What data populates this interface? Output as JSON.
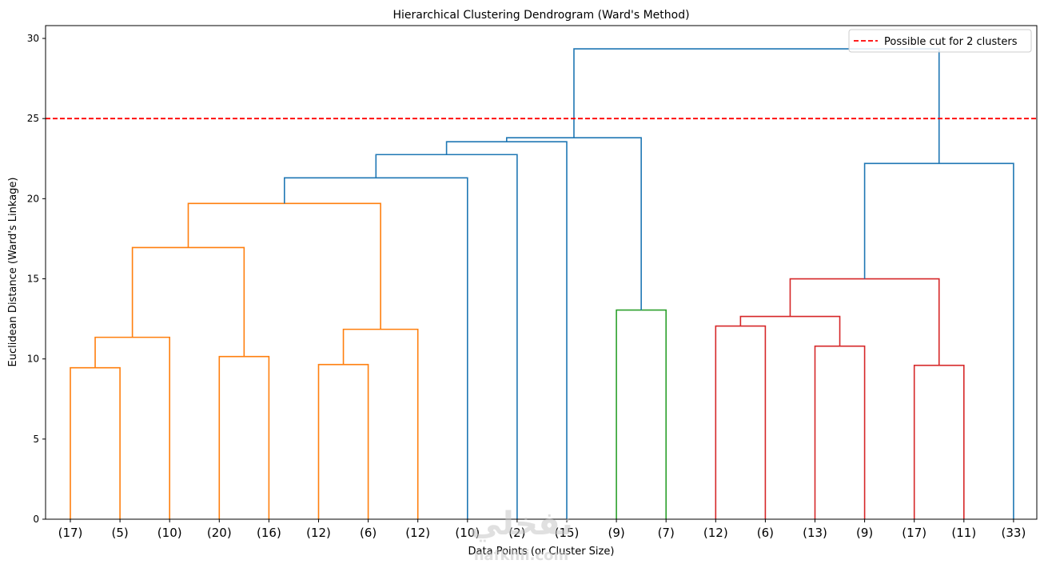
{
  "chart_data": {
    "type": "dendrogram",
    "title": "Hierarchical Clustering Dendrogram (Ward's Method)",
    "xlabel": "Data Points (or Cluster Size)",
    "ylabel": "Euclidean Distance (Ward's Linkage)",
    "ylim": [
      0,
      30.8
    ],
    "yticks": [
      0,
      5,
      10,
      15,
      20,
      25,
      30
    ],
    "grid": false,
    "leaves": [
      "(17)",
      "(5)",
      "(10)",
      "(20)",
      "(16)",
      "(12)",
      "(6)",
      "(12)",
      "(10)",
      "(2)",
      "(15)",
      "(9)",
      "(7)",
      "(12)",
      "(6)",
      "(13)",
      "(9)",
      "(17)",
      "(11)",
      "(33)"
    ],
    "colors": {
      "orange": "#ff7f0e",
      "green": "#2ca02c",
      "red": "#d62728",
      "blue": "#1f77b4",
      "cut": "#ff0000"
    },
    "links": [
      {
        "left": "L0",
        "right": "L1",
        "height": 9.45,
        "color": "orange"
      },
      {
        "left": "M0",
        "right": "L2",
        "height": 11.35,
        "color": "orange"
      },
      {
        "left": "L3",
        "right": "L4",
        "height": 10.15,
        "color": "orange"
      },
      {
        "left": "M1",
        "right": "M2",
        "height": 16.95,
        "color": "orange"
      },
      {
        "left": "L5",
        "right": "L6",
        "height": 9.65,
        "color": "orange"
      },
      {
        "left": "M4",
        "right": "L7",
        "height": 11.85,
        "color": "orange"
      },
      {
        "left": "M3",
        "right": "M5",
        "height": 19.7,
        "color": "orange"
      },
      {
        "left": "M6",
        "right": "L8",
        "height": 21.3,
        "color": "blue"
      },
      {
        "left": "M7",
        "right": "L9",
        "height": 22.75,
        "color": "blue"
      },
      {
        "left": "M8",
        "right": "L10",
        "height": 23.55,
        "color": "blue"
      },
      {
        "left": "L11",
        "right": "L12",
        "height": 13.05,
        "color": "green"
      },
      {
        "left": "M9",
        "right": "M10",
        "height": 23.8,
        "color": "blue"
      },
      {
        "left": "L13",
        "right": "L14",
        "height": 12.05,
        "color": "red"
      },
      {
        "left": "L15",
        "right": "L16",
        "height": 10.8,
        "color": "red"
      },
      {
        "left": "M12",
        "right": "M13",
        "height": 12.65,
        "color": "red"
      },
      {
        "left": "L17",
        "right": "L18",
        "height": 9.6,
        "color": "red"
      },
      {
        "left": "M14",
        "right": "M15",
        "height": 15.0,
        "color": "red"
      },
      {
        "left": "M16",
        "right": "L19",
        "height": 22.2,
        "color": "blue"
      },
      {
        "left": "M11",
        "right": "M17",
        "height": 29.35,
        "color": "blue"
      }
    ],
    "cut_line": {
      "y": 25,
      "label": "Possible cut for 2 clusters"
    },
    "legend_position": "top-right"
  },
  "watermark": {
    "main": "نفخلي",
    "sub": "nafkhli.com"
  }
}
